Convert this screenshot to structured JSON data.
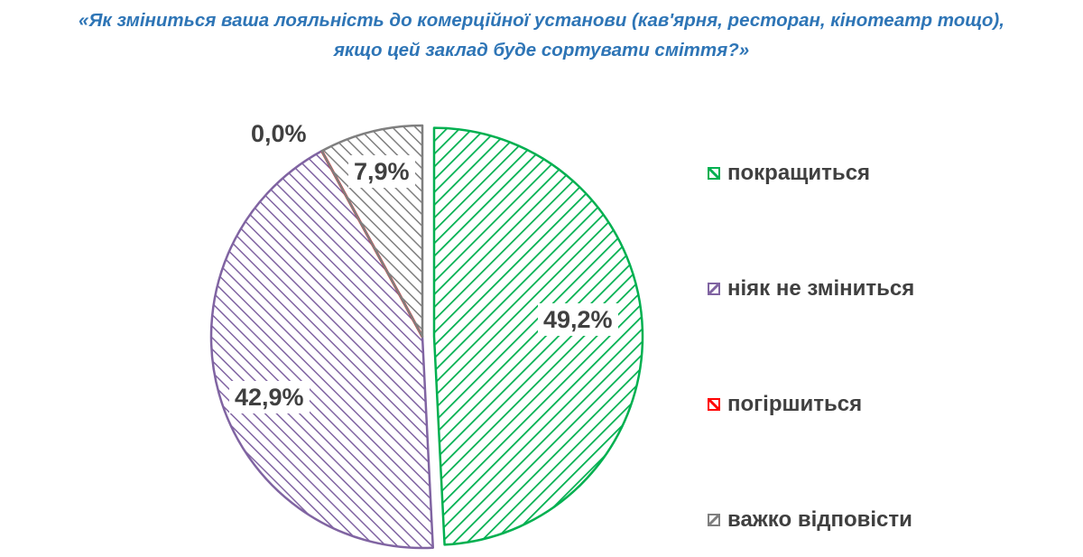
{
  "title": {
    "line1": "«Як зміниться ваша лояльність до комерційної установи (кав'ярня, ресторан, кінотеатр тощо),",
    "line2": "якщо цей заклад буде сортувати сміття?»"
  },
  "legend": {
    "items": [
      {
        "label": "покращиться",
        "color": "#00b050"
      },
      {
        "label": "ніяк не зміниться",
        "color": "#8064a2"
      },
      {
        "label": "погіршиться",
        "color": "#ff0000"
      },
      {
        "label": "важко відповісти",
        "color": "#7f7f7f"
      }
    ]
  },
  "labels": {
    "improve": "49,2%",
    "nochange": "42,9%",
    "worse": "0,0%",
    "hard": "7,9%"
  },
  "chart_data": {
    "type": "pie",
    "title": "«Як зміниться ваша лояльність до комерційної установи (кав'ярня, ресторан, кінотеатр тощо), якщо цей заклад буде сортувати сміття?»",
    "categories": [
      "покращиться",
      "ніяк не зміниться",
      "погіршиться",
      "важко відповісти"
    ],
    "values": [
      49.2,
      42.9,
      0.0,
      7.9
    ],
    "value_labels": [
      "49,2%",
      "42,9%",
      "0,0%",
      "7,9%"
    ],
    "colors": [
      "#00b050",
      "#8064a2",
      "#ff0000",
      "#7f7f7f"
    ],
    "fill": "diagonal-hatch",
    "exploded": [
      "покращиться"
    ],
    "legend_position": "right",
    "start_angle_deg": 0,
    "direction": "clockwise"
  }
}
